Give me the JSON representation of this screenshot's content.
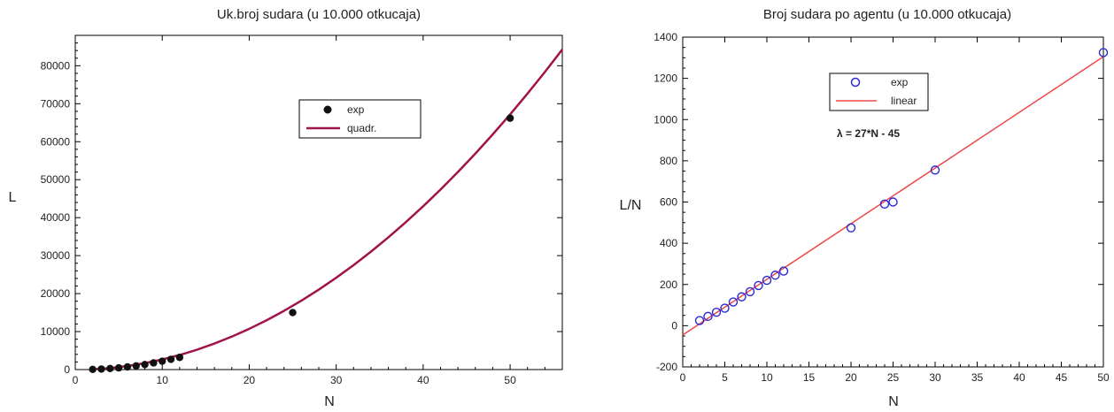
{
  "chart_data": [
    {
      "type": "scatter",
      "title": "Uk.broj sudara (u 10.000 otkucaja)",
      "xlabel": "N",
      "ylabel": "L",
      "xlim": [
        0,
        56
      ],
      "ylim": [
        0,
        88000
      ],
      "xticks": [
        0,
        10,
        20,
        30,
        40,
        50
      ],
      "yticks": [
        0,
        10000,
        20000,
        30000,
        40000,
        50000,
        60000,
        70000,
        80000
      ],
      "grid": false,
      "legend_position": "top-center",
      "colors": {
        "exp": "#111111",
        "fit": "#a0144a"
      },
      "series": [
        {
          "name": "exp",
          "marker": "filled-circle",
          "x": [
            2,
            3,
            4,
            5,
            6,
            7,
            8,
            9,
            10,
            11,
            12,
            25,
            50
          ],
          "y": [
            50,
            140,
            280,
            440,
            700,
            980,
            1330,
            1750,
            2200,
            2700,
            3200,
            15000,
            66200
          ]
        },
        {
          "name": "quadr.",
          "line": "solid",
          "x": [
            2,
            4,
            6,
            8,
            10,
            12,
            14,
            16,
            18,
            20,
            22,
            24,
            26,
            28,
            30,
            32,
            34,
            36,
            38,
            40,
            42,
            44,
            46,
            48,
            50,
            52,
            54,
            56
          ],
          "y": [
            63,
            388,
            927,
            1682,
            2651,
            3836,
            5235,
            6850,
            8679,
            10724,
            12983,
            15458,
            18147,
            21052,
            24171,
            27506,
            31055,
            34819,
            38799,
            42993,
            47403,
            52027,
            56867,
            61921,
            67190,
            72675,
            78374,
            84288
          ]
        }
      ]
    },
    {
      "type": "scatter",
      "title": "Broj sudara po agentu (u 10.000 otkucaja)",
      "xlabel": "N",
      "ylabel": "L/N",
      "xlim": [
        0,
        50
      ],
      "ylim": [
        -200,
        1400
      ],
      "xticks": [
        0,
        5,
        10,
        15,
        20,
        25,
        30,
        35,
        40,
        45,
        50
      ],
      "yticks": [
        -200,
        0,
        200,
        400,
        600,
        800,
        1000,
        1200,
        1400
      ],
      "grid": false,
      "legend_position": "top-left",
      "annotation": "λ = 27*N - 45",
      "colors": {
        "exp": "#2a2ad6",
        "fit": "#f04848"
      },
      "series": [
        {
          "name": "exp",
          "marker": "open-circle",
          "x": [
            2,
            3,
            4,
            5,
            6,
            7,
            8,
            9,
            10,
            11,
            12,
            20,
            24,
            25,
            30,
            50
          ],
          "y": [
            25,
            45,
            65,
            85,
            115,
            140,
            165,
            195,
            220,
            245,
            265,
            475,
            590,
            600,
            755,
            1325
          ]
        },
        {
          "name": "linear",
          "line": "solid",
          "x": [
            0,
            50
          ],
          "y": [
            -45,
            1305
          ]
        }
      ]
    }
  ]
}
